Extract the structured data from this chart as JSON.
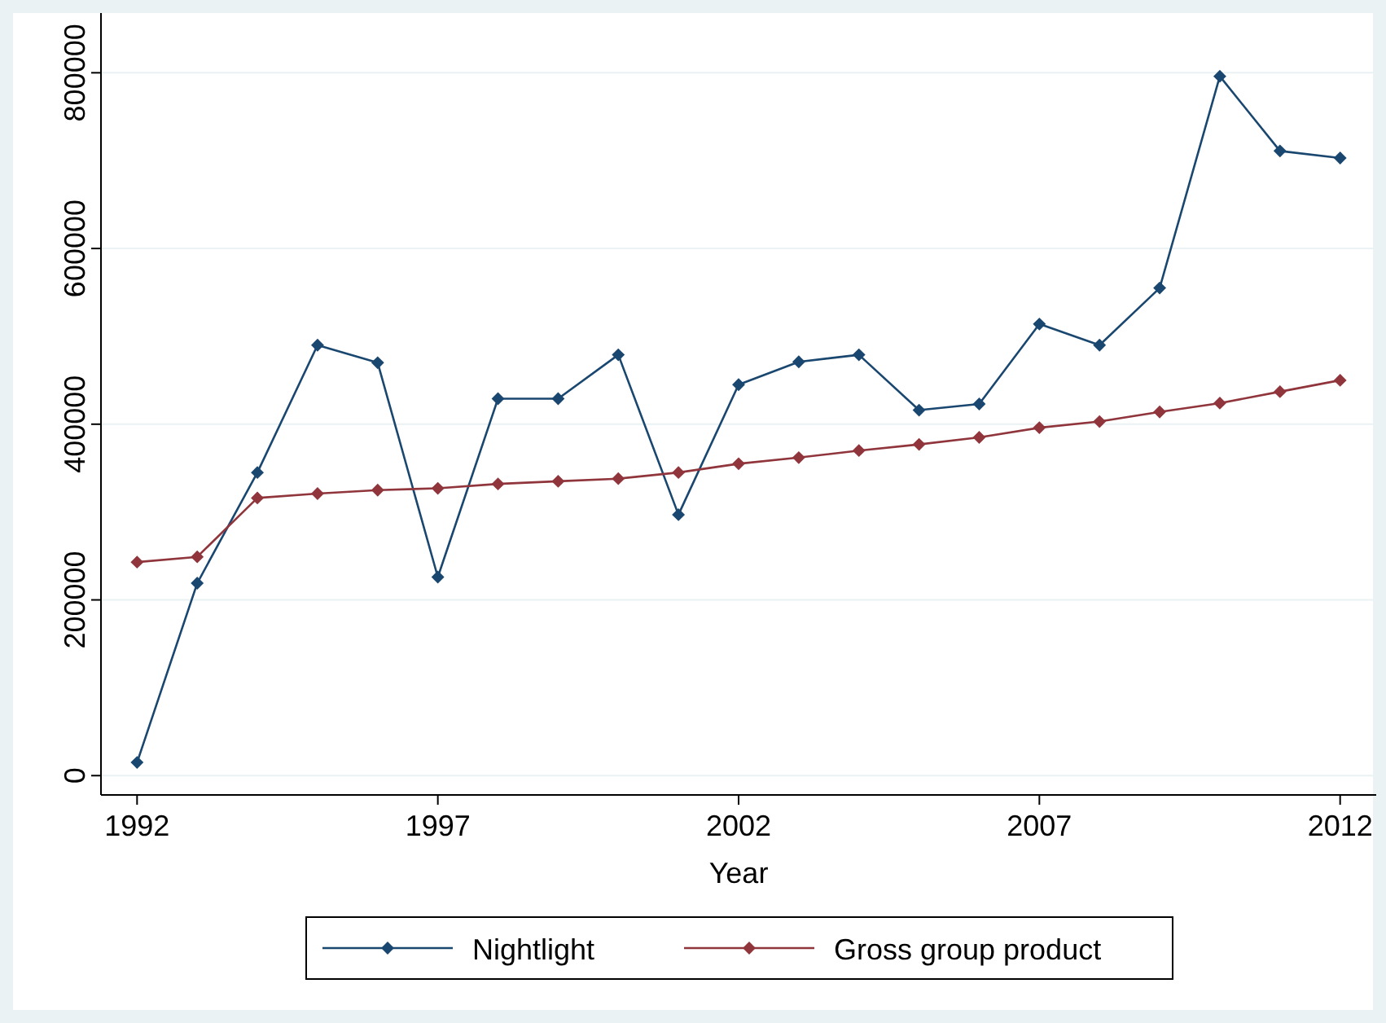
{
  "chart_data": {
    "type": "line",
    "xlabel": "Year",
    "x": [
      1992,
      1993,
      1994,
      1995,
      1996,
      1997,
      1998,
      1999,
      2000,
      2001,
      2002,
      2003,
      2004,
      2005,
      2006,
      2007,
      2008,
      2009,
      2010,
      2011,
      2012
    ],
    "series": [
      {
        "name": "Nightlight",
        "color": "#1a476f",
        "values": [
          15000,
          219000,
          345000,
          490000,
          470000,
          226000,
          429000,
          429000,
          479000,
          297000,
          445000,
          471000,
          479000,
          416000,
          423000,
          514000,
          490000,
          555000,
          796000,
          711000,
          703000
        ]
      },
      {
        "name": "Gross group product",
        "color": "#90353b",
        "values": [
          243000,
          249000,
          316000,
          321000,
          325000,
          327000,
          332000,
          335000,
          338000,
          345000,
          355000,
          362000,
          370000,
          377000,
          385000,
          396000,
          403000,
          414000,
          424000,
          437000,
          450000
        ]
      }
    ],
    "xlim": [
      1991.4,
      2012.6
    ],
    "xticks": [
      1992,
      1997,
      2002,
      2007,
      2012
    ],
    "ylim": [
      -22000,
      868000
    ],
    "yticks": [
      0,
      200000,
      400000,
      600000,
      800000
    ],
    "grid": "y",
    "legend": "bottom",
    "marker": "diamond",
    "line_style": "solid"
  }
}
